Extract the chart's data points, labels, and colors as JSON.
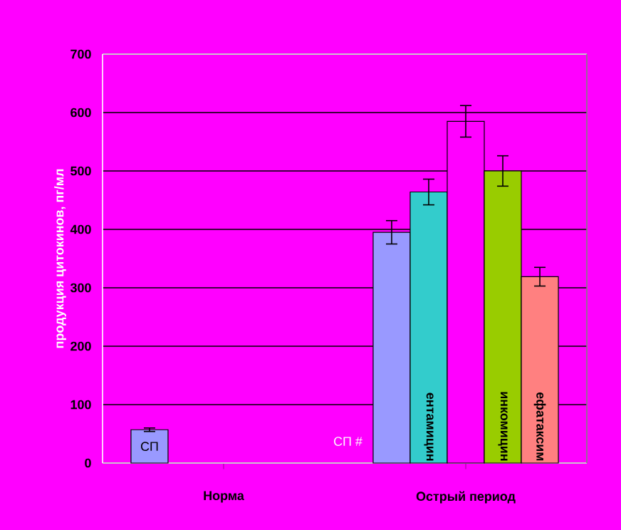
{
  "chart_data": {
    "type": "bar",
    "ylabel": "продукция цитокинов, пг/мл",
    "categories": [
      "Норма",
      "Острый период"
    ],
    "series": [
      {
        "color": "#9999ff",
        "values": [
          57,
          395
        ],
        "errors": [
          3,
          20
        ],
        "value_labels": [
          "СП",
          null
        ]
      },
      {
        "color": "#33cccc",
        "values": [
          null,
          464
        ],
        "errors": [
          null,
          22
        ],
        "value_labels": [
          null,
          "ентамицин"
        ]
      },
      {
        "color": "#ff00ff",
        "values": [
          null,
          585
        ],
        "errors": [
          null,
          27
        ]
      },
      {
        "color": "#99cc00",
        "values": [
          null,
          500
        ],
        "errors": [
          null,
          26
        ],
        "value_labels": [
          null,
          "инкомицин"
        ]
      },
      {
        "color": "#ff8080",
        "values": [
          null,
          319
        ],
        "errors": [
          null,
          16
        ],
        "value_labels": [
          null,
          "ефатаксим"
        ]
      }
    ],
    "annotations": [
      "СП #"
    ],
    "ylim": [
      0,
      700
    ],
    "yticks": [
      0,
      100,
      200,
      300,
      400,
      500,
      600,
      700
    ],
    "grid": "y"
  }
}
